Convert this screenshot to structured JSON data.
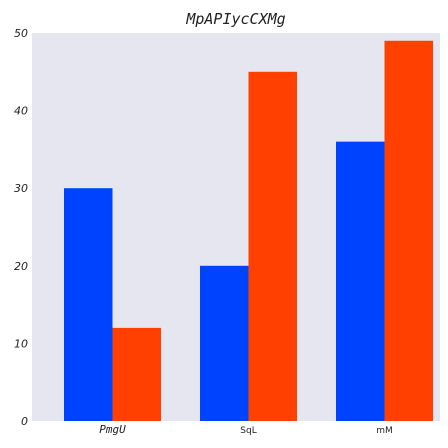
{
  "chart_data": {
    "type": "bar",
    "title": "MpAPIycCXMg",
    "xlabel": "",
    "ylabel": "",
    "categories": [
      "PmgU",
      "SqL",
      "mM"
    ],
    "series": [
      {
        "color": "#0043ff",
        "values": [
          30,
          20,
          36
        ]
      },
      {
        "color": "#ff4000",
        "values": [
          12,
          45,
          49
        ]
      }
    ],
    "ylim": [
      0,
      50
    ],
    "yticks": [
      0,
      10,
      20,
      30,
      40,
      50
    ],
    "grid": false,
    "legend": "none",
    "background_color": "#e6e6f0"
  }
}
